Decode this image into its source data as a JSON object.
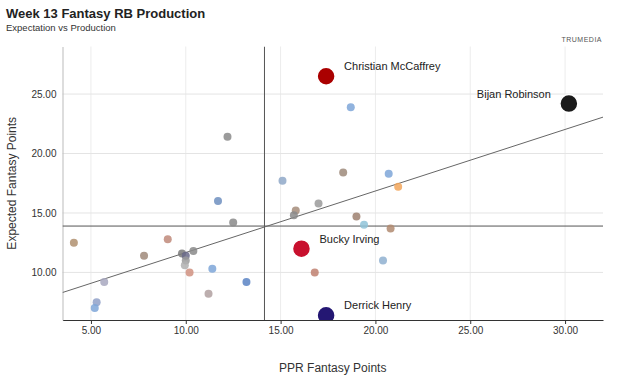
{
  "chart_data": {
    "type": "scatter",
    "title": "Week 13 Fantasy RB Production",
    "subtitle": "Expectation vs Production",
    "logo": "TRUMEDIA",
    "x_label": "PPR Fantasy Points",
    "y_label": "Expected Fantasy Points",
    "x": [
      17.4,
      30.2,
      16.1,
      17.4,
      18.7,
      12.2,
      18.3,
      15.1,
      20.7,
      21.2,
      11.7,
      17.0,
      15.8,
      15.7,
      19.0,
      19.4,
      20.8,
      12.5,
      4.1,
      9.05,
      7.8,
      9.8,
      10.4,
      10.0,
      10.0,
      9.95,
      10.2,
      11.4,
      13.2,
      5.7,
      11.2,
      5.3,
      5.2,
      16.8,
      20.4
    ],
    "values": [
      26.5,
      24.2,
      12.0,
      6.4,
      23.9,
      21.4,
      18.4,
      17.7,
      18.3,
      17.2,
      16.0,
      15.8,
      15.2,
      14.8,
      14.7,
      14.0,
      13.7,
      14.2,
      12.5,
      12.8,
      11.4,
      11.6,
      11.8,
      11.4,
      11.0,
      10.6,
      10.0,
      10.3,
      9.2,
      9.2,
      8.2,
      7.5,
      7.0,
      10.0,
      11.0
    ],
    "colors": [
      "#aa0000",
      "#1a1a1a",
      "#c8102e",
      "#241773",
      "#7ea6d8",
      "#8a8a8a",
      "#9e8a7a",
      "#8fa8c8",
      "#7ea6d8",
      "#f2a65a",
      "#6f8fc0",
      "#9a9a9a",
      "#a58c7a",
      "#8a8a8a",
      "#9e8070",
      "#8fc3d8",
      "#b08a70",
      "#8a8a8a",
      "#b09070",
      "#c08a7a",
      "#a08a7a",
      "#7a7a7a",
      "#8a8a8a",
      "#6a6a8a",
      "#9a9a9a",
      "#b0b0b0",
      "#d09080",
      "#7ea6d8",
      "#5b84c4",
      "#a8a8c0",
      "#b0a0a0",
      "#8fa0c8",
      "#7ea6d8",
      "#c08070",
      "#8fb0d0"
    ],
    "point_labels": [
      "Christian McCaffrey",
      "Bijan Robinson",
      "Bucky Irving",
      "Derrick Henry",
      null,
      null,
      null,
      null,
      null,
      null,
      null,
      null,
      null,
      null,
      null,
      null,
      null,
      null,
      null,
      null,
      null,
      null,
      null,
      null,
      null,
      null,
      null,
      null,
      null,
      null,
      null,
      null,
      null,
      null,
      null
    ],
    "xlim": [
      3.5,
      32
    ],
    "ylim": [
      6,
      29
    ],
    "xticks": [
      {
        "value": 5,
        "label": "5.00"
      },
      {
        "value": 10,
        "label": "10.00"
      },
      {
        "value": 15,
        "label": "15.00"
      },
      {
        "value": 20,
        "label": "20.00"
      },
      {
        "value": 25,
        "label": "25.00"
      },
      {
        "value": 30,
        "label": "30.00"
      }
    ],
    "yticks": [
      {
        "value": 10,
        "label": "10.00"
      },
      {
        "value": 15,
        "label": "15.00"
      },
      {
        "value": 20,
        "label": "20.00"
      },
      {
        "value": 25,
        "label": "25.00"
      }
    ],
    "grid": true,
    "reference_lines": {
      "x": 14.15,
      "y": 13.9
    },
    "trend_line": {
      "x": [
        3.5,
        32
      ],
      "y": [
        8.31,
        23.06
      ]
    }
  }
}
